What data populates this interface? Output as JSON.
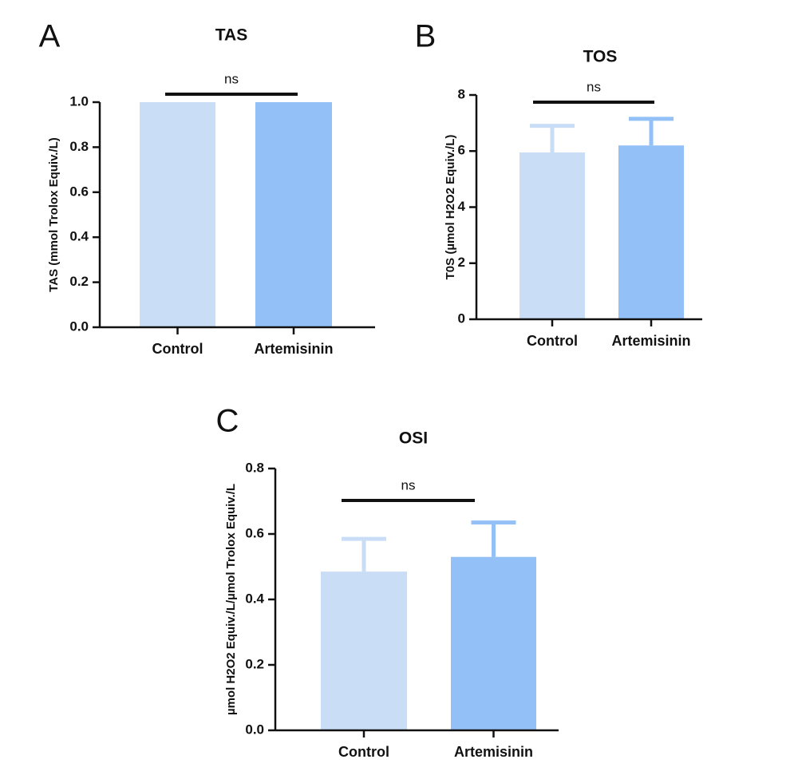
{
  "chart_data": [
    {
      "type": "bar",
      "panel": "A",
      "title": "TAS",
      "ylabel": "TAS (mmol Trolox Equiv./L)",
      "categories": [
        "Control",
        "Artemisinin"
      ],
      "values": [
        1.0,
        1.0
      ],
      "colors": [
        "#c9ddf7",
        "#92c0f7"
      ],
      "ylim": [
        0,
        1.0
      ],
      "yticks": [
        {
          "value": 0,
          "label": "0.0"
        },
        0.2,
        0.4,
        0.6,
        0.8,
        {
          "value": 1.0,
          "label": "1.0"
        }
      ],
      "annotation": "ns"
    },
    {
      "type": "bar",
      "panel": "B",
      "title": "TOS",
      "ylabel": "T0S  (µmol H2O2 Equiv./L)",
      "categories": [
        "Control",
        "Artemisinin"
      ],
      "values": [
        5.95,
        6.2
      ],
      "errors": [
        0.95,
        0.95
      ],
      "colors": [
        "#c9ddf7",
        "#92c0f7"
      ],
      "ylim": [
        0,
        8
      ],
      "yticks": [
        0,
        2,
        4,
        6,
        8
      ],
      "annotation": "ns"
    },
    {
      "type": "bar",
      "panel": "C",
      "title": "OSI",
      "ylabel": "µmol H2O2 Equiv./L/µmol Trolox Equiv./L",
      "categories": [
        "Control",
        "Artemisinin"
      ],
      "values": [
        0.485,
        0.53
      ],
      "errors": [
        0.1,
        0.105
      ],
      "colors": [
        "#c9ddf7",
        "#92c0f7"
      ],
      "ylim": [
        0,
        0.8
      ],
      "yticks": [
        {
          "value": 0,
          "label": "0.0"
        },
        0.2,
        0.4,
        0.6,
        0.8
      ],
      "annotation": "ns"
    }
  ]
}
